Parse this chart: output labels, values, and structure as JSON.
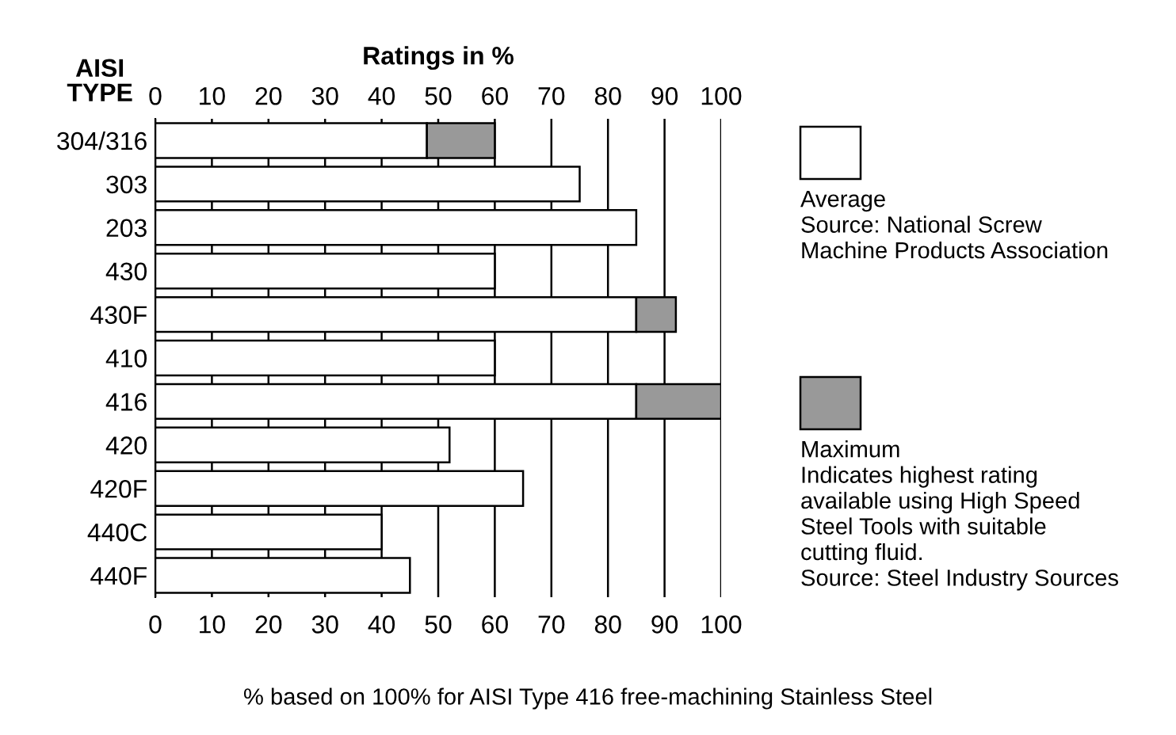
{
  "chart_data": {
    "type": "bar",
    "orientation": "horizontal",
    "stacked": true,
    "xlabel": "Ratings in %",
    "ylabel": "AISI\nTYPE",
    "categories": [
      "304/316",
      "303",
      "203",
      "430",
      "430F",
      "410",
      "416",
      "420",
      "420F",
      "440C",
      "440F"
    ],
    "series": [
      {
        "name": "Average",
        "color": "#ffffff",
        "values": [
          48,
          75,
          85,
          60,
          85,
          60,
          85,
          52,
          65,
          40,
          45
        ]
      },
      {
        "name": "Maximum",
        "color": "#999999",
        "values": [
          12,
          null,
          null,
          null,
          7,
          null,
          15,
          null,
          null,
          null,
          null
        ]
      }
    ],
    "xlim": [
      0,
      100
    ],
    "xticks": [
      0,
      10,
      20,
      30,
      40,
      50,
      60,
      70,
      80,
      90,
      100
    ],
    "x2lim": [
      0,
      100
    ],
    "x2ticks": [
      0,
      10,
      20,
      30,
      40,
      50,
      60,
      70,
      80,
      90,
      100
    ],
    "grid": "x",
    "legend": "right",
    "annotations": [
      "Source: National Screw\nMachine Products Association",
      "Indicates highest rating\navailable using High Speed\nSteel Tools with suitable\ncutting fluid.\nSource: Steel Industry Sources",
      "% based on 100% for AISI Type 416 free-machining Stainless Steel"
    ]
  }
}
